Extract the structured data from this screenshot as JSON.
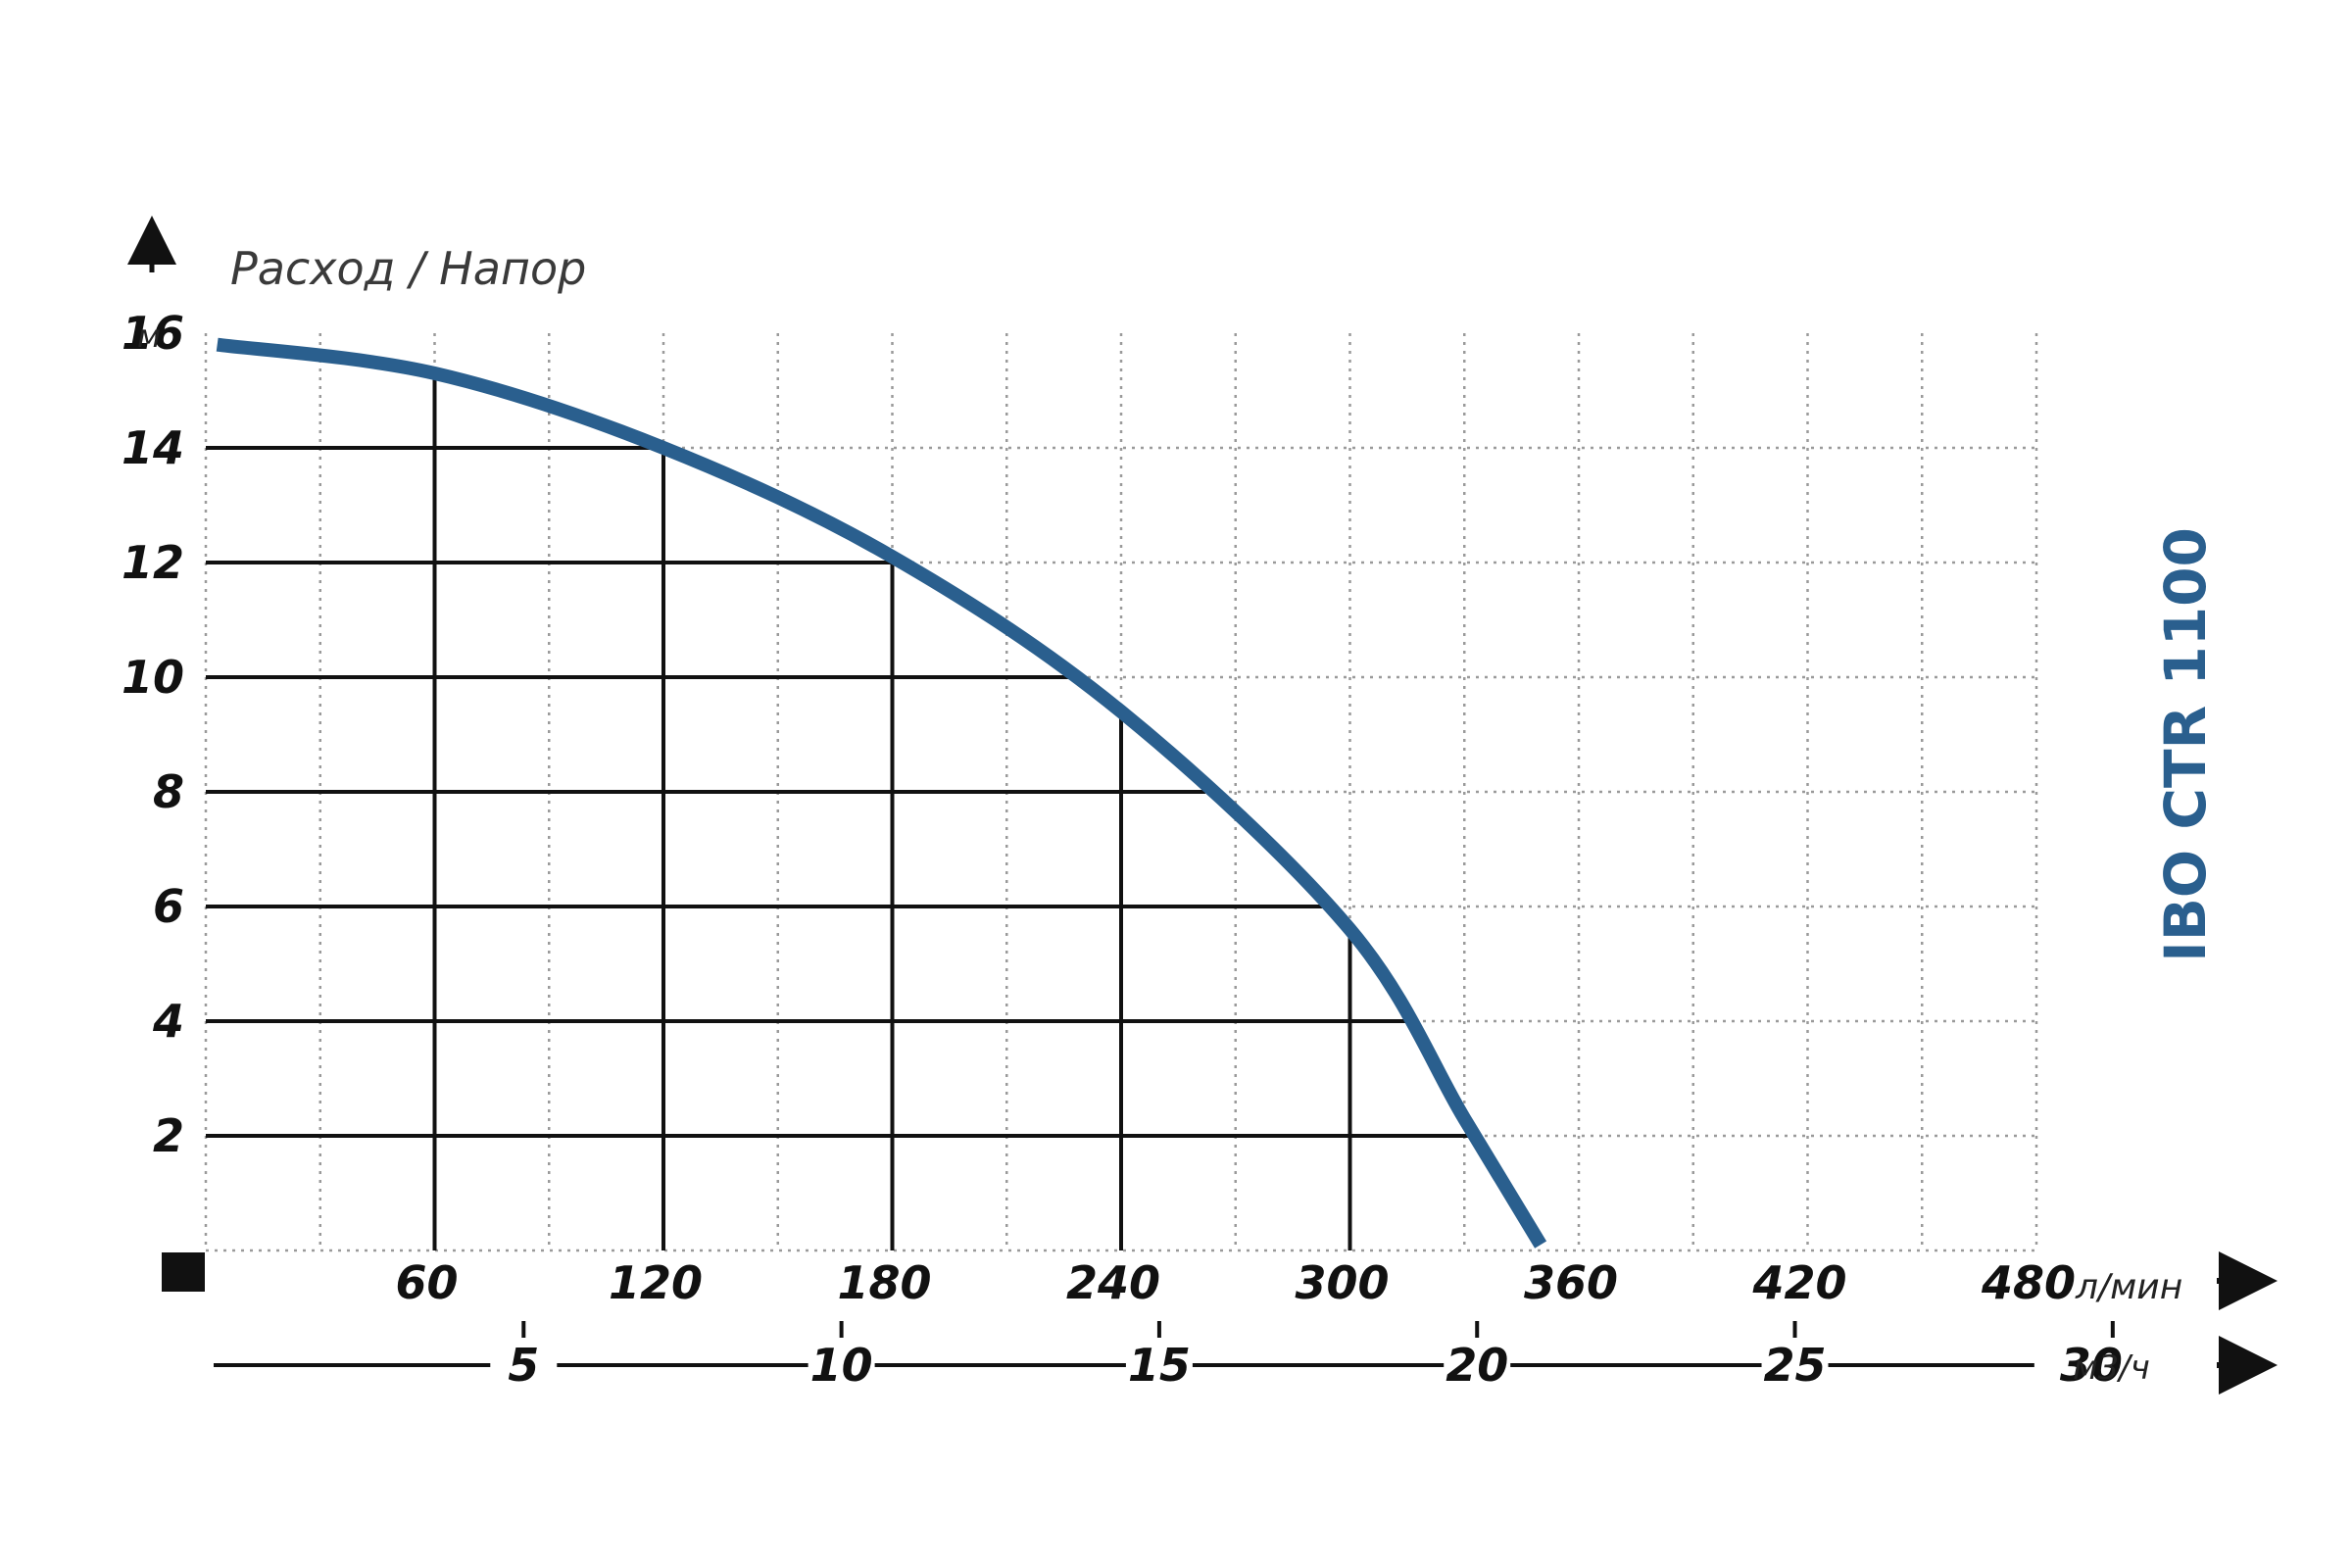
{
  "chart_data": {
    "type": "line",
    "title": "Расход / Напор",
    "model_label": "IBO CTR 1100",
    "y_axis": {
      "unit": "м",
      "ylim": [
        0,
        16
      ],
      "ticks": [
        2,
        4,
        6,
        8,
        10,
        12,
        14,
        16
      ]
    },
    "x_axis_primary": {
      "unit": "л/мин",
      "xlim": [
        0,
        480
      ],
      "ticks": [
        60,
        120,
        180,
        240,
        300,
        360,
        420,
        480
      ]
    },
    "x_axis_secondary": {
      "unit": "м3/ч",
      "ticks": [
        5,
        10,
        15,
        20,
        25,
        30
      ]
    },
    "grid": true,
    "colors": {
      "curve": "#2a5f8e",
      "label": "#2a5f8e",
      "solid_grid": "#111111",
      "dotted_grid": "#9a9a9a"
    },
    "series": [
      {
        "x": [
          3,
          60,
          120,
          180,
          240,
          300,
          330,
          350
        ],
        "y": [
          15.8,
          15.3,
          14.0,
          12.1,
          9.4,
          5.6,
          2.3,
          0.1
        ]
      }
    ]
  }
}
